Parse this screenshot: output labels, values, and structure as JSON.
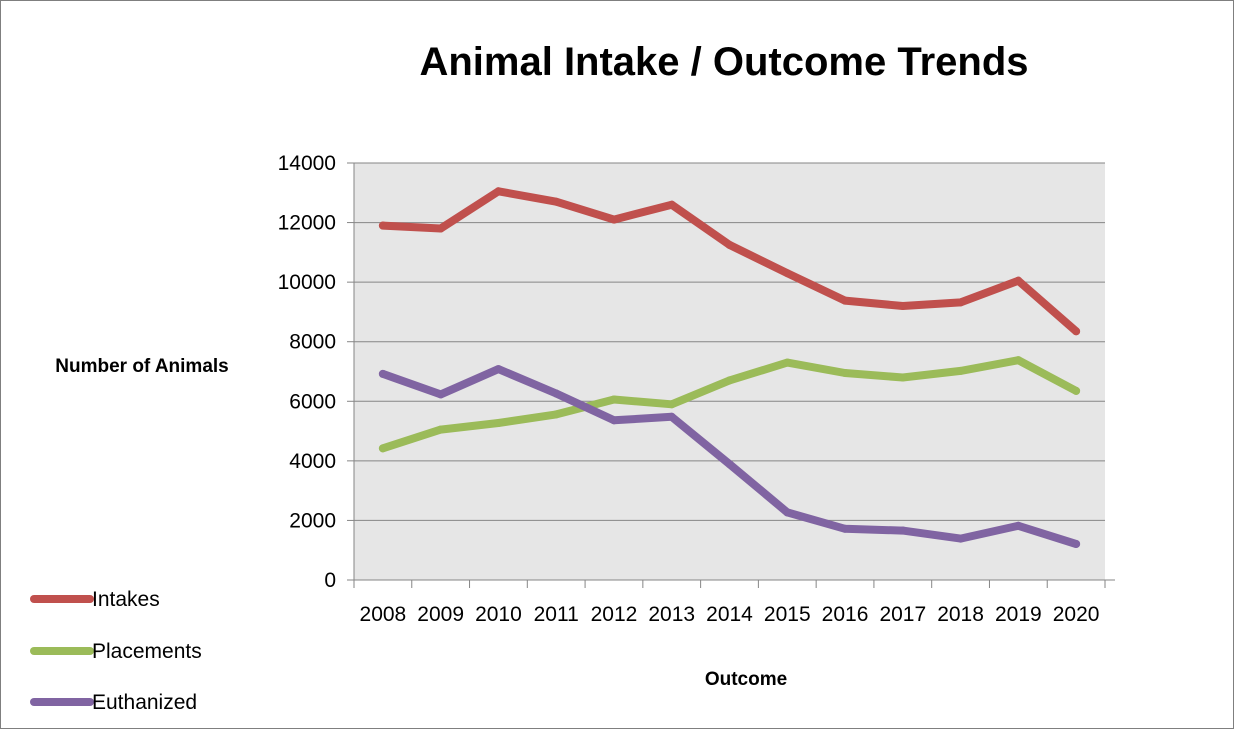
{
  "chart_data": {
    "type": "line",
    "title": "Animal Intake / Outcome Trends",
    "xlabel": "Outcome",
    "ylabel": "Number of Animals",
    "categories": [
      "2008",
      "2009",
      "2010",
      "2011",
      "2012",
      "2013",
      "2014",
      "2015",
      "2016",
      "2017",
      "2018",
      "2019",
      "2020"
    ],
    "ylim": [
      0,
      14000
    ],
    "yticks": [
      0,
      2000,
      4000,
      6000,
      8000,
      10000,
      12000,
      14000
    ],
    "grid": true,
    "legend_position": "bottom-left",
    "series": [
      {
        "name": "Intakes",
        "color": "#c0504d",
        "values": [
          11900,
          11800,
          13050,
          12700,
          12100,
          12600,
          11250,
          10300,
          9380,
          9200,
          9320,
          10050,
          8350
        ]
      },
      {
        "name": "Placements",
        "color": "#9bbb59",
        "values": [
          4420,
          5050,
          5270,
          5560,
          6060,
          5900,
          6700,
          7300,
          6950,
          6800,
          7020,
          7380,
          6350
        ]
      },
      {
        "name": "Euthanized",
        "color": "#8064a2",
        "values": [
          6920,
          6230,
          7080,
          6260,
          5360,
          5480,
          3890,
          2270,
          1720,
          1660,
          1390,
          1820,
          1210
        ]
      }
    ]
  }
}
